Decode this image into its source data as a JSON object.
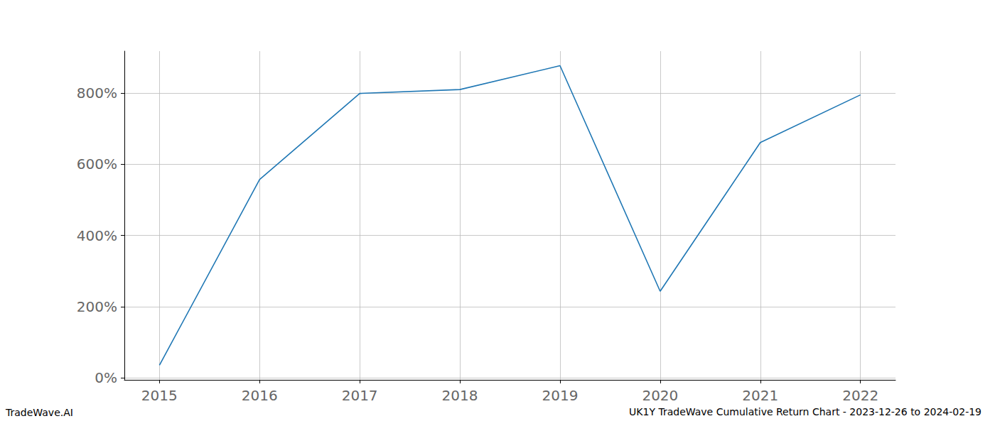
{
  "chart_data": {
    "type": "line",
    "title": "UK1Y TradeWave Cumulative Return Chart - 2023-12-26 to 2024-02-19",
    "annotations": [
      "TradeWave.AI"
    ],
    "x": [
      2015,
      2016,
      2017,
      2018,
      2019,
      2020,
      2021,
      2022
    ],
    "values": [
      35,
      557,
      799,
      810,
      877,
      243,
      661,
      795
    ],
    "color": "#1f77b4",
    "xlim": [
      2014.65,
      2022.35
    ],
    "xticks": [
      2015,
      2016,
      2017,
      2018,
      2019,
      2020,
      2021,
      2022
    ],
    "ylim": [
      -6,
      918
    ],
    "yticks": [
      {
        "value": 0,
        "label": "0%"
      },
      {
        "value": 200,
        "label": "200%"
      },
      {
        "value": 400,
        "label": "400%"
      },
      {
        "value": 600,
        "label": "600%"
      },
      {
        "value": 800,
        "label": "800%"
      }
    ],
    "grid": true
  }
}
